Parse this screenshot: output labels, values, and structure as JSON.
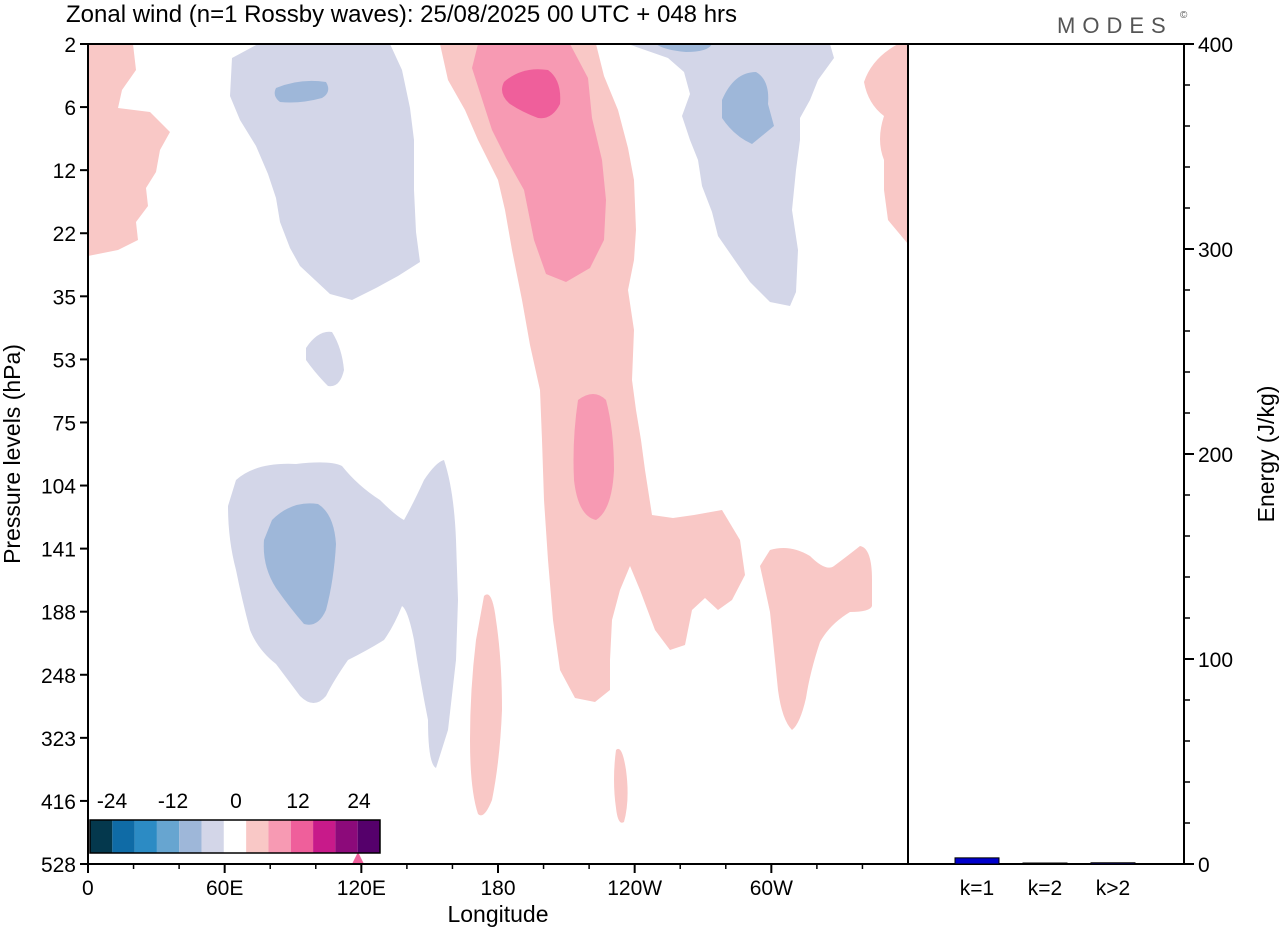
{
  "title": "Zonal wind (n=1 Rossby waves):  25/08/2025  00 UTC  + 048 hrs",
  "brand": "MODES",
  "brand_mark": "©",
  "chart_data": [
    {
      "type": "heatmap",
      "title": "Zonal wind (n=1 Rossby waves):  25/08/2025  00 UTC  + 048 hrs",
      "xlabel": "Longitude",
      "ylabel": "Pressure levels (hPa)",
      "x_ticks": [
        "0",
        "60E",
        "120E",
        "180",
        "120W",
        "60W"
      ],
      "x_tick_degrees": [
        0,
        60,
        120,
        180,
        240,
        300
      ],
      "xlim": [
        0,
        360
      ],
      "y_ticks": [
        "2",
        "6",
        "12",
        "22",
        "35",
        "53",
        "75",
        "104",
        "141",
        "188",
        "248",
        "323",
        "416",
        "528"
      ],
      "colorbar": {
        "labels": [
          "-24",
          "-12",
          "0",
          "12",
          "24"
        ],
        "levels": [
          -30,
          -25,
          -20,
          -15,
          -10,
          -5,
          0,
          5,
          10,
          15,
          20,
          25,
          30
        ],
        "colors": [
          "#04384d",
          "#0f6ba6",
          "#2c8bc4",
          "#67a5d0",
          "#9eb7d9",
          "#d3d6e8",
          "#ffffff",
          "#f9c8c6",
          "#f79ab3",
          "#ef5f9b",
          "#c81a8a",
          "#8c0a7a",
          "#55006b"
        ]
      },
      "regions": [
        {
          "sign": "positive",
          "approx_value": 2,
          "region": "extreme upper-left corner, 2-6 hPa near 0E"
        },
        {
          "sign": "positive",
          "approx_value": 2,
          "region": "0-35E, 2-22 hPa"
        },
        {
          "sign": "negative",
          "approx_value": -2,
          "region": "60-145E, 2-35 hPa"
        },
        {
          "sign": "negative",
          "approx_value": -7,
          "region": "83-105E, around 5 hPa"
        },
        {
          "sign": "negative",
          "approx_value": -2,
          "region": "95-115E, 40-70 hPa"
        },
        {
          "sign": "positive",
          "approx_value": 2,
          "region": "157-245W band, 2-270 hPa"
        },
        {
          "sign": "positive",
          "approx_value": 7,
          "region": "170-210E, 2-30 hPa"
        },
        {
          "sign": "positive",
          "approx_value": 12,
          "region": "182-203E, 4-7 hPa"
        },
        {
          "sign": "positive",
          "approx_value": 7,
          "region": "205-215E, 75-160 hPa"
        },
        {
          "sign": "negative",
          "approx_value": -2,
          "region": "250-325E, 2-35 hPa"
        },
        {
          "sign": "negative",
          "approx_value": -7,
          "region": "285-300E, 4-9 hPa"
        },
        {
          "sign": "positive",
          "approx_value": 2,
          "region": "342-360E, 2-25 hPa"
        },
        {
          "sign": "negative",
          "approx_value": -2,
          "region": "60-160E, 104-370 hPa"
        },
        {
          "sign": "negative",
          "approx_value": -7,
          "region": "77-100E, 125-200 hPa"
        },
        {
          "sign": "positive",
          "approx_value": 2,
          "region": "212-290E, 150-250 hPa"
        },
        {
          "sign": "positive",
          "approx_value": 2,
          "region": "295-345E, 130-320 hPa"
        },
        {
          "sign": "positive",
          "approx_value": 2,
          "region": "168-178E, 190-410 hPa"
        },
        {
          "sign": "positive",
          "approx_value": 2,
          "region": "230-235E, 360-420 hPa"
        }
      ]
    },
    {
      "type": "bar",
      "categories": [
        "k=1",
        "k=2",
        "k>2"
      ],
      "values": [
        3,
        0.3,
        0.6
      ],
      "ylabel": "Energy (J/kg)",
      "ylim": [
        0,
        400
      ],
      "y_ticks": [
        "0",
        "100",
        "200",
        "300",
        "400"
      ],
      "colors": [
        "#0000cc",
        "#0000cc",
        "#0000cc"
      ]
    }
  ]
}
